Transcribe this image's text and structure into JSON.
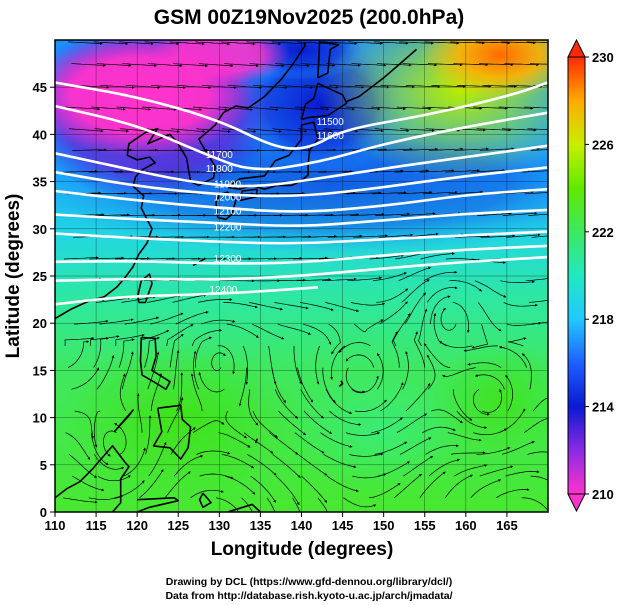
{
  "title": "GSM 00Z19Nov2025 (200.0hPa)",
  "chart_data": {
    "type": "heatmap",
    "title": "GSM 00Z19Nov2025 (200.0hPa)",
    "xlabel": "Longitude (degrees)",
    "ylabel": "Latitude  (degrees)",
    "xlim": [
      110,
      170
    ],
    "ylim": [
      0,
      50
    ],
    "xticks": [
      "110",
      "115",
      "120",
      "125",
      "130",
      "135",
      "140",
      "145",
      "150",
      "155",
      "160",
      "165"
    ],
    "yticks": [
      "0",
      "5",
      "10",
      "15",
      "20",
      "25",
      "30",
      "35",
      "40",
      "45"
    ],
    "colorbar": {
      "min": 210,
      "max": 230,
      "labels": [
        "210",
        "214",
        "218",
        "222",
        "226",
        "230"
      ],
      "colors": [
        "#ff33cc",
        "#8a2be2",
        "#0a1ad0",
        "#1e90ff",
        "#22d8e0",
        "#2ee870",
        "#48ea00",
        "#b8ee00",
        "#ffcc00",
        "#ff7700",
        "#ff2a00"
      ]
    },
    "contours": {
      "color": "#ffffff",
      "labels": [
        "11500",
        "11600",
        "11700",
        "11800",
        "11900",
        "12000",
        "12100",
        "12200",
        "12300",
        "12400"
      ],
      "label_positions": [
        {
          "label": "11500",
          "lon": 143.5,
          "lat": 41.0
        },
        {
          "label": "11600",
          "lon": 143.5,
          "lat": 39.5
        },
        {
          "label": "11700",
          "lon": 130.0,
          "lat": 37.5
        },
        {
          "label": "11800",
          "lon": 130.0,
          "lat": 36.0
        },
        {
          "label": "11900",
          "lon": 131.0,
          "lat": 34.4
        },
        {
          "label": "12000",
          "lon": 131.0,
          "lat": 33.0
        },
        {
          "label": "12100",
          "lon": 131.0,
          "lat": 31.5
        },
        {
          "label": "12200",
          "lon": 131.0,
          "lat": 29.8
        },
        {
          "label": "12300",
          "lon": 131.0,
          "lat": 26.5
        },
        {
          "label": "12400",
          "lon": 130.5,
          "lat": 23.2
        }
      ]
    }
  },
  "credits": {
    "line1": "Drawing by DCL (https://www.gfd-dennou.org/library/dcl/)",
    "line2": "Data from http://database.rish.kyoto-u.ac.jp/arch/jmadata/"
  }
}
